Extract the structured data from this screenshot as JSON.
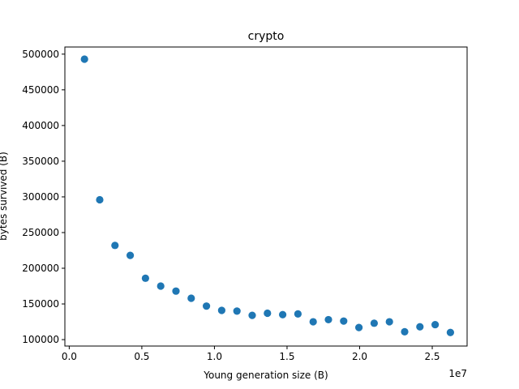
{
  "chart_data": {
    "type": "scatter",
    "title": "crypto",
    "xlabel": "Young generation size (B)",
    "ylabel": "bytes survived (B)",
    "x_offset_label": "1e7",
    "x_scale_exponent": 7,
    "xlim": [
      -0.03,
      2.74
    ],
    "ylim": [
      91000,
      510000
    ],
    "x_ticks": [
      0.0,
      0.5,
      1.0,
      1.5,
      2.0,
      2.5
    ],
    "x_tick_labels": [
      "0.0",
      "0.5",
      "1.0",
      "1.5",
      "2.0",
      "2.5"
    ],
    "y_ticks": [
      100000,
      150000,
      200000,
      250000,
      300000,
      350000,
      400000,
      450000,
      500000
    ],
    "y_tick_labels": [
      "100000",
      "150000",
      "200000",
      "250000",
      "300000",
      "350000",
      "400000",
      "450000",
      "500000"
    ],
    "grid": false,
    "marker_color": "#1f77b4",
    "series": [
      {
        "x": [
          0.105,
          0.21,
          0.315,
          0.42,
          0.525,
          0.63,
          0.735,
          0.84,
          0.945,
          1.05,
          1.155,
          1.26,
          1.365,
          1.47,
          1.575,
          1.68,
          1.785,
          1.89,
          1.995,
          2.1,
          2.205,
          2.31,
          2.415,
          2.52,
          2.625
        ],
        "y": [
          493000,
          296000,
          232000,
          218000,
          186000,
          175000,
          168000,
          158000,
          147000,
          141000,
          140000,
          134000,
          137000,
          135000,
          136000,
          125000,
          128000,
          126000,
          117000,
          123000,
          125000,
          111000,
          118000,
          121000,
          110000
        ]
      }
    ]
  }
}
